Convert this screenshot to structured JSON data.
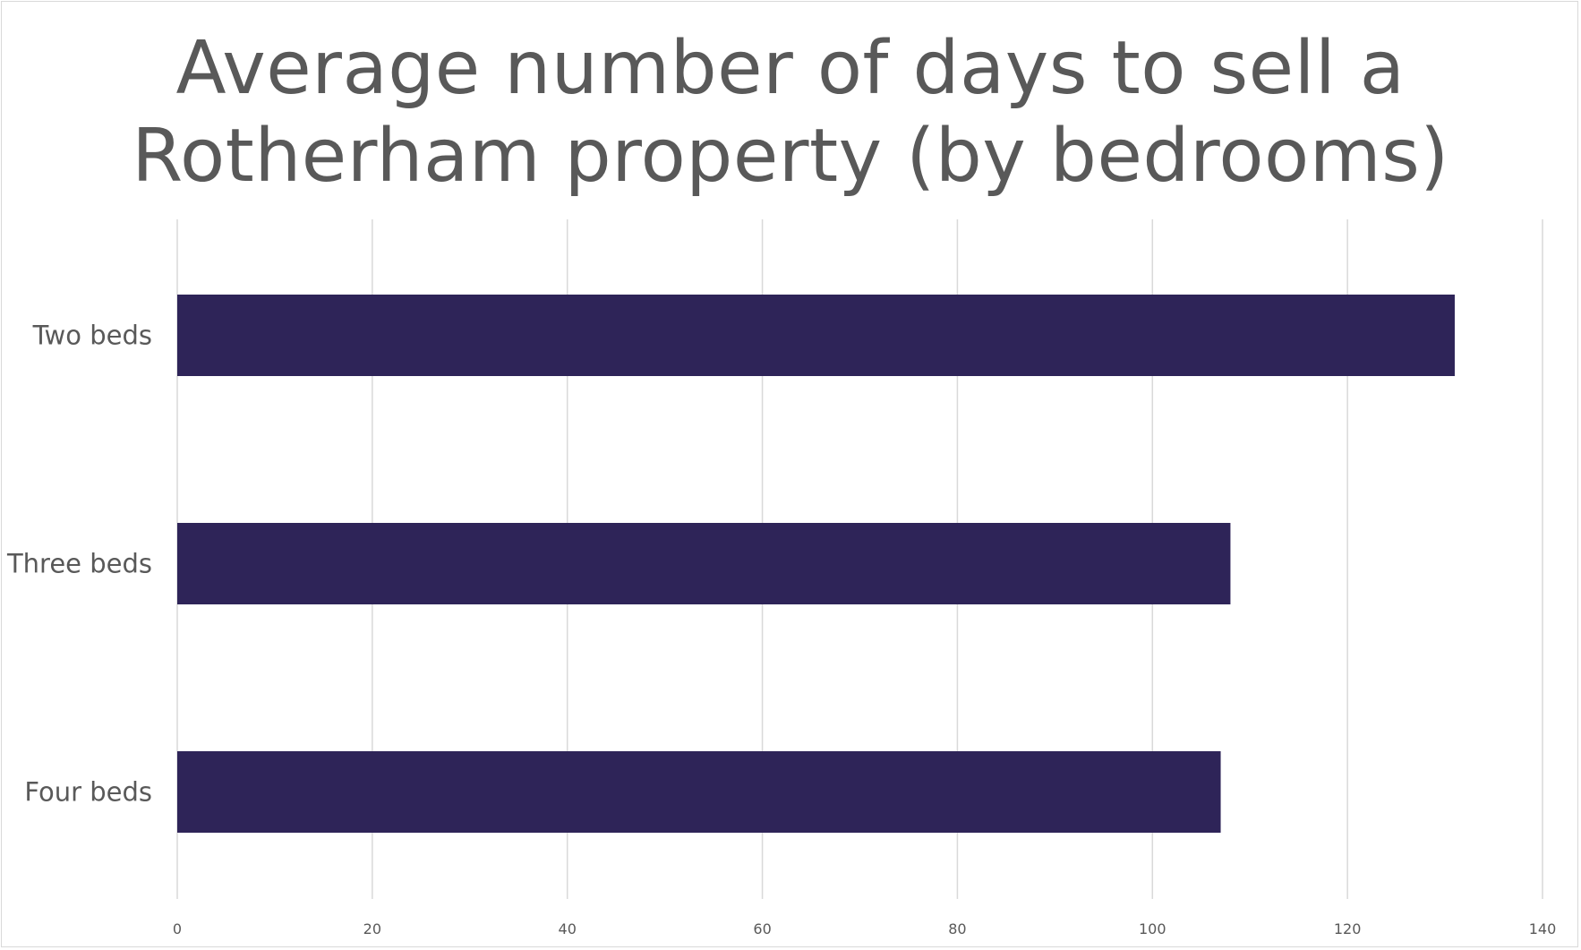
{
  "chart_data": {
    "type": "bar",
    "orientation": "horizontal",
    "title_lines": [
      "Average number of days to sell a",
      "Rotherham property (by bedrooms)"
    ],
    "categories": [
      "Two beds",
      "Three beds",
      "Four beds"
    ],
    "values": [
      131,
      108,
      107
    ],
    "xlim": [
      0,
      140
    ],
    "xticks": [
      0,
      20,
      40,
      60,
      80,
      100,
      120,
      140
    ],
    "grid": true,
    "legend": "none",
    "bar_color": "#2e2458",
    "grid_color": "#d9d9d9",
    "text_color": "#595959"
  }
}
